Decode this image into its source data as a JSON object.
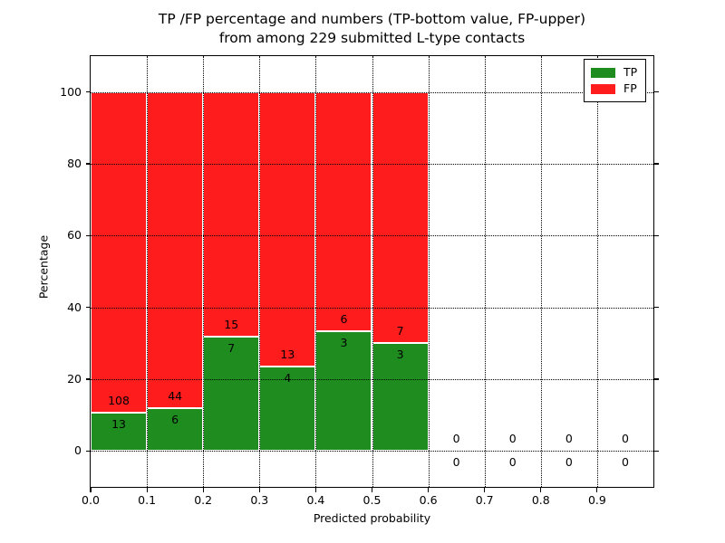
{
  "figure": {
    "title_line1": "TP /FP percentage and numbers (TP-bottom value, FP-upper)",
    "title_line2": "from among 229 submitted L-type contacts"
  },
  "chart_data": {
    "type": "bar",
    "stacked": true,
    "normalized_to_percent": true,
    "title": "TP /FP percentage and numbers (TP-bottom value, FP-upper) from among 229 submitted L-type contacts",
    "total_contacts": 229,
    "xlabel": "Predicted probability",
    "ylabel": "Percentage",
    "xlim": [
      0.0,
      1.0
    ],
    "ylim": [
      -10,
      110
    ],
    "bin_width": 0.1,
    "categories": [
      0.0,
      0.1,
      0.2,
      0.3,
      0.4,
      0.5,
      0.6,
      0.7,
      0.8,
      0.9
    ],
    "series": [
      {
        "name": "TP",
        "color": "#1f8c1f",
        "values": [
          13,
          6,
          7,
          4,
          3,
          3,
          0,
          0,
          0,
          0
        ]
      },
      {
        "name": "FP",
        "color": "#ff1c1c",
        "values": [
          108,
          44,
          15,
          13,
          6,
          7,
          0,
          0,
          0,
          0
        ]
      }
    ],
    "bar_edge_color": "#ffffff",
    "grid": true,
    "grid_style": "dotted",
    "grid_color": "#000000",
    "xticks": {
      "values": [
        0.0,
        0.1,
        0.2,
        0.3,
        0.4,
        0.5,
        0.6,
        0.7,
        0.8,
        0.9
      ],
      "labels": [
        "0.0",
        "0.1",
        "0.2",
        "0.3",
        "0.4",
        "0.5",
        "0.6",
        "0.7",
        "0.8",
        "0.9"
      ]
    },
    "yticks": {
      "values": [
        0,
        20,
        40,
        60,
        80,
        100
      ],
      "labels": [
        "0",
        "20",
        "40",
        "60",
        "80",
        "100"
      ]
    },
    "legend": {
      "position": "upper right",
      "entries": [
        {
          "label": "TP",
          "color": "#1f8c1f"
        },
        {
          "label": "FP",
          "color": "#ff1c1c"
        }
      ]
    },
    "annotation_rule": "FP count printed above the TP/FP boundary, TP count printed below it; empty bins show 0 above and 0 below the zero line"
  }
}
